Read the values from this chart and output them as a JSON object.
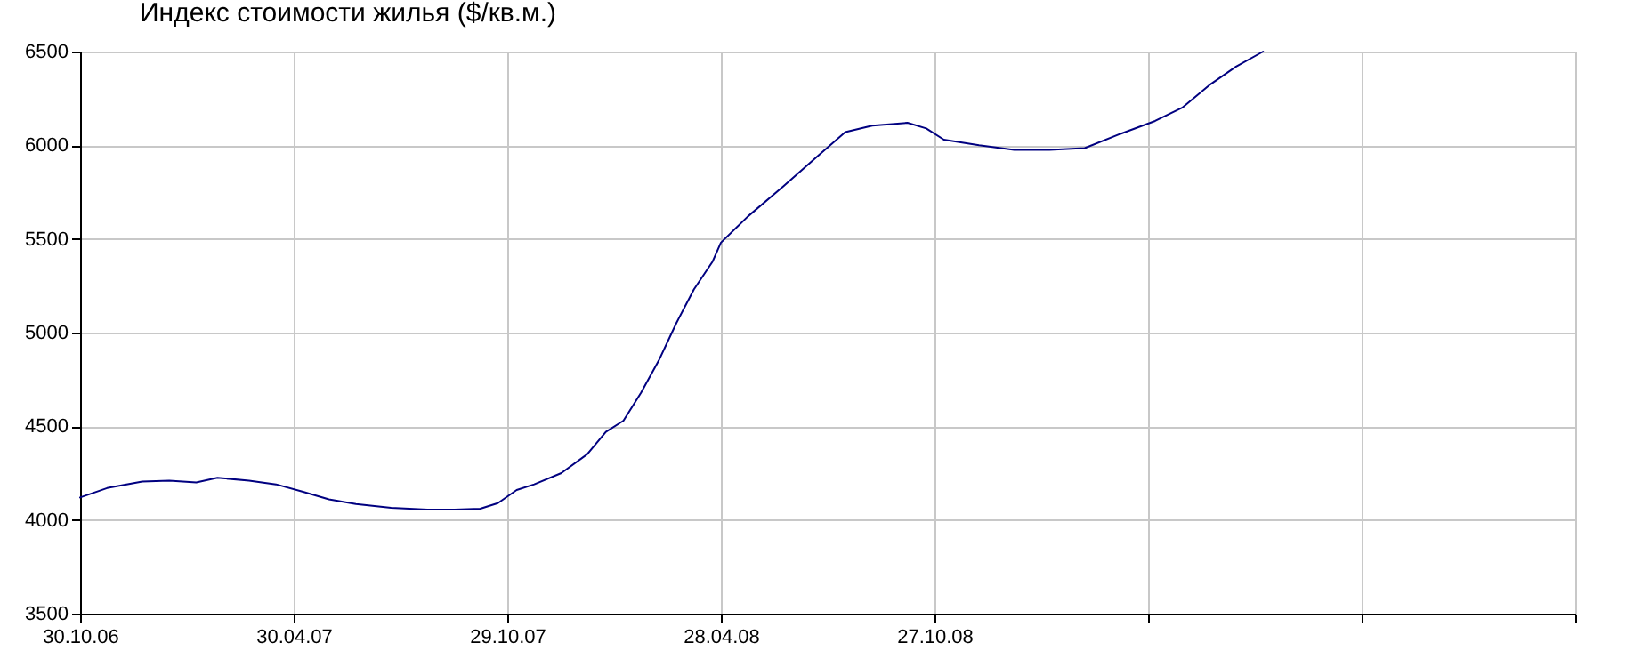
{
  "chart_data": {
    "type": "line",
    "title": "Индекс стоимости жилья ($/кв.м.)",
    "x": [
      "2006-10-30",
      "2006-11-22",
      "2006-12-22",
      "2007-01-14",
      "2007-02-06",
      "2007-02-24",
      "2007-03-23",
      "2007-04-15",
      "2007-05-08",
      "2007-05-30",
      "2007-06-22",
      "2007-07-22",
      "2007-08-22",
      "2007-09-14",
      "2007-10-06",
      "2007-10-21",
      "2007-11-06",
      "2007-11-21",
      "2007-12-14",
      "2008-01-05",
      "2008-01-21",
      "2008-02-05",
      "2008-02-20",
      "2008-03-06",
      "2008-03-21",
      "2008-04-05",
      "2008-04-21",
      "2008-04-28",
      "2008-05-21",
      "2008-06-20",
      "2008-07-21",
      "2008-08-12",
      "2008-09-04",
      "2008-10-04",
      "2008-10-20",
      "2008-11-04",
      "2008-12-04",
      "2009-01-03",
      "2009-02-02",
      "2009-03-04",
      "2009-04-03",
      "2009-05-03",
      "2009-05-26",
      "2009-06-18",
      "2009-07-11",
      "2009-08-03"
    ],
    "series": [
      {
        "color": "#000080",
        "values": [
          4120,
          4170,
          4205,
          4210,
          4200,
          4225,
          4210,
          4190,
          4150,
          4110,
          4085,
          4065,
          4055,
          4055,
          4060,
          4090,
          4160,
          4190,
          4250,
          4350,
          4470,
          4530,
          4680,
          4850,
          5050,
          5230,
          5380,
          5480,
          5620,
          5780,
          5950,
          6070,
          6105,
          6120,
          6090,
          6030,
          6000,
          5975,
          5975,
          5985,
          6060,
          6130,
          6200,
          6320,
          6420,
          6500
        ]
      }
    ],
    "xlim": [
      "2006-10-30",
      "2010-04-26"
    ],
    "xticks": [
      {
        "value": "2006-10-30",
        "label": "30.10.06"
      },
      {
        "value": "2007-04-30",
        "label": "30.04.07"
      },
      {
        "value": "2007-10-29",
        "label": "29.10.07"
      },
      {
        "value": "2008-04-28",
        "label": "28.04.08"
      },
      {
        "value": "2008-10-27",
        "label": "27.10.08"
      },
      {
        "value": "2009-04-27",
        "label": null
      },
      {
        "value": "2009-10-26",
        "label": null
      },
      {
        "value": "2010-04-26",
        "label": null
      }
    ],
    "ylim": [
      3500,
      6500
    ],
    "yticks": [
      3500,
      4000,
      4500,
      5000,
      5500,
      6000,
      6500
    ],
    "grid": true,
    "legend": false,
    "marker": "none",
    "line_style": "solid"
  }
}
